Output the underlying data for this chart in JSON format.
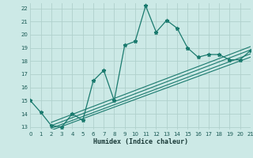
{
  "humidex_x": [
    0,
    1,
    2,
    3,
    4,
    5,
    6,
    7,
    8,
    9,
    10,
    11,
    12,
    13,
    14,
    15,
    16,
    17,
    18,
    19,
    20,
    21
  ],
  "humidex_y": [
    15.0,
    14.1,
    13.1,
    13.0,
    14.0,
    13.5,
    16.5,
    17.3,
    15.0,
    19.2,
    19.5,
    22.2,
    20.2,
    21.1,
    20.5,
    19.0,
    18.3,
    18.5,
    18.5,
    18.1,
    18.1,
    18.8
  ],
  "reg_lines": [
    {
      "x": [
        2,
        21
      ],
      "y": [
        13.1,
        18.85
      ]
    },
    {
      "x": [
        2,
        21
      ],
      "y": [
        12.9,
        18.55
      ]
    },
    {
      "x": [
        2,
        21
      ],
      "y": [
        12.75,
        18.3
      ]
    },
    {
      "x": [
        2,
        21
      ],
      "y": [
        13.35,
        19.1
      ]
    }
  ],
  "xlim": [
    0,
    21
  ],
  "ylim": [
    12.8,
    22.4
  ],
  "xticks": [
    0,
    1,
    2,
    3,
    4,
    5,
    6,
    7,
    8,
    9,
    10,
    11,
    12,
    13,
    14,
    15,
    16,
    17,
    18,
    19,
    20,
    21
  ],
  "yticks": [
    13,
    14,
    15,
    16,
    17,
    18,
    19,
    20,
    21,
    22
  ],
  "xlabel": "Humidex (Indice chaleur)",
  "line_color": "#1a7a6e",
  "bg_color": "#cce9e6",
  "grid_color": "#b0d0cc"
}
